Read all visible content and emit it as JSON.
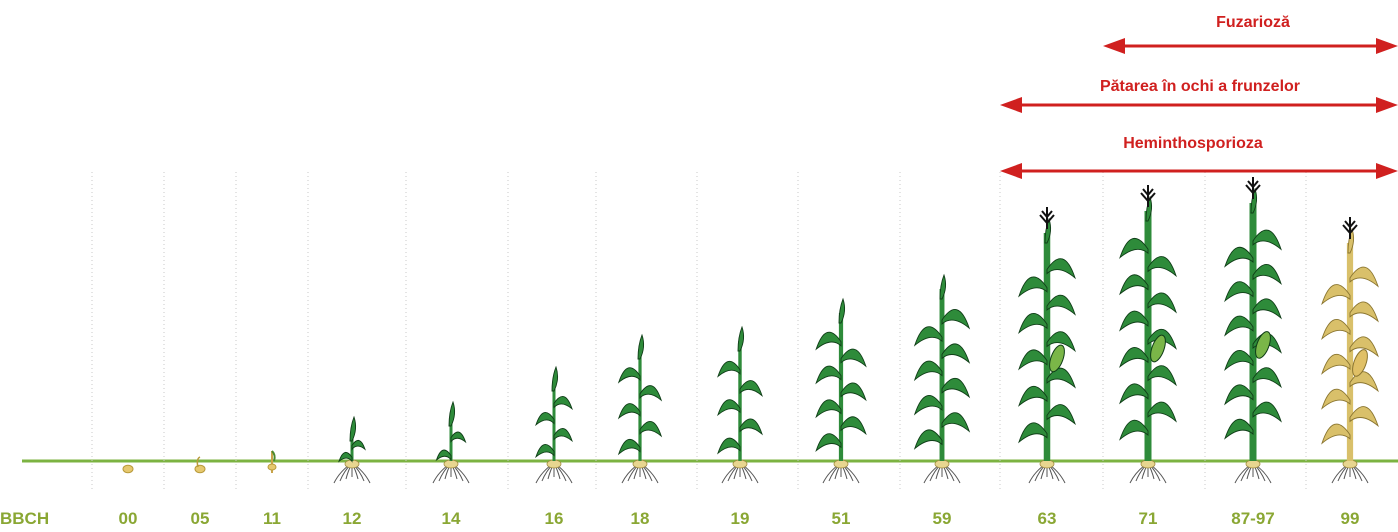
{
  "axis_label": "BBCH",
  "stages": [
    "00",
    "05",
    "11",
    "12",
    "14",
    "16",
    "18",
    "19",
    "51",
    "59",
    "63",
    "71",
    "87-97",
    "99"
  ],
  "diseases": [
    {
      "name": "Fuzarioză",
      "start_stage": "71",
      "end_stage": "99"
    },
    {
      "name": "Pătarea în ochi a frunzelor",
      "start_stage": "63",
      "end_stage": "99"
    },
    {
      "name": "Heminthosporioza",
      "start_stage": "63",
      "end_stage": "99"
    }
  ],
  "colors": {
    "ground": "#7cb342",
    "arrow": "#d0201f",
    "label": "#8aa734",
    "leaf": "#2e8b3a",
    "dry_leaf": "#d9c06a",
    "root": "#e8d690"
  }
}
